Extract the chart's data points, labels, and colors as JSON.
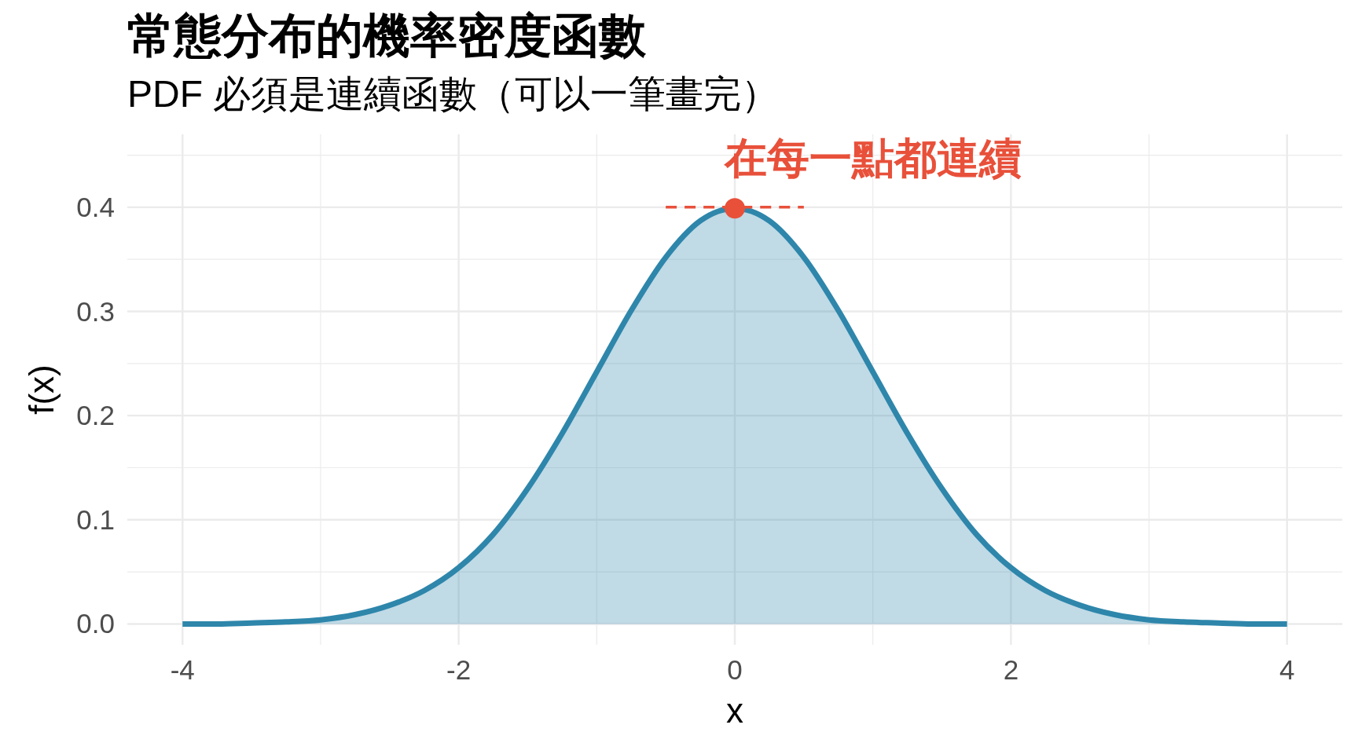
{
  "chart_data": {
    "type": "area",
    "title": "常態分布的機率密度函數",
    "subtitle": "PDF 必須是連續函數（可以一筆畫完）",
    "xlabel": "x",
    "ylabel": "f(x)",
    "xlim": [
      -4.4,
      4.4
    ],
    "ylim": [
      -0.02,
      0.47
    ],
    "xticks": [
      -4,
      {
        "value": -3,
        "label": null
      },
      -2,
      {
        "value": -1,
        "label": null
      },
      0,
      {
        "value": 1,
        "label": null
      },
      2,
      {
        "value": 3,
        "label": null
      },
      4
    ],
    "yticks": [
      {
        "value": 0,
        "label": "0.0"
      },
      {
        "value": 0.05,
        "label": null
      },
      {
        "value": 0.1,
        "label": "0.1"
      },
      {
        "value": 0.15,
        "label": null
      },
      {
        "value": 0.2,
        "label": "0.2"
      },
      {
        "value": 0.25,
        "label": null
      },
      {
        "value": 0.3,
        "label": "0.3"
      },
      {
        "value": 0.35,
        "label": null
      },
      {
        "value": 0.4,
        "label": "0.4"
      },
      {
        "value": 0.45,
        "label": null
      }
    ],
    "grid": true,
    "annotations": [
      "在每一點都連續"
    ],
    "series": [
      {
        "color": "#2e86ab",
        "x": [
          -4,
          -3.75,
          -3.5,
          -3.25,
          -3,
          -2.75,
          -2.5,
          -2.25,
          -2,
          -1.75,
          -1.5,
          -1.25,
          -1,
          -0.75,
          -0.5,
          -0.25,
          0,
          0.25,
          0.5,
          0.75,
          1,
          1.25,
          1.5,
          1.75,
          2,
          2.25,
          2.5,
          2.75,
          3,
          3.25,
          3.5,
          3.75,
          4
        ],
        "values": [
          0.0,
          0.0,
          0.001,
          0.002,
          0.004,
          0.009,
          0.018,
          0.032,
          0.054,
          0.086,
          0.13,
          0.183,
          0.242,
          0.301,
          0.352,
          0.387,
          0.399,
          0.387,
          0.352,
          0.301,
          0.242,
          0.183,
          0.13,
          0.086,
          0.054,
          0.032,
          0.018,
          0.009,
          0.004,
          0.002,
          0.001,
          0.0,
          0.0
        ]
      },
      {
        "type": "line",
        "line_style": "dashed",
        "color": "#e8503a",
        "x": [
          -0.5,
          0.5
        ],
        "values": [
          0.4,
          0.4
        ]
      },
      {
        "type": "scatter",
        "marker": "circle",
        "color": "#e8503a",
        "x": [
          0
        ],
        "values": [
          0.399
        ]
      }
    ]
  }
}
